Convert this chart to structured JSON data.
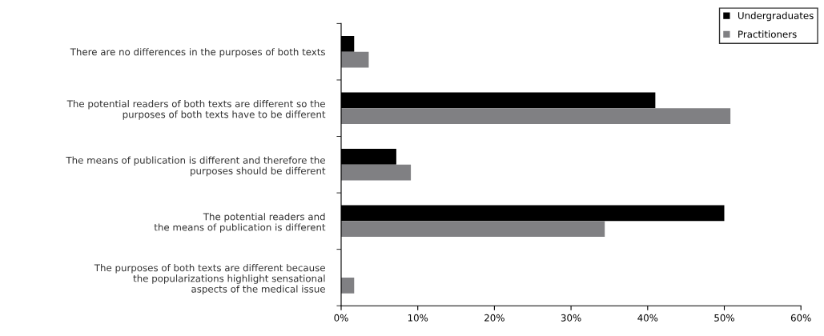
{
  "chart_data": {
    "type": "bar",
    "orientation": "horizontal",
    "categories": [
      "There are no differences in the purposes of both texts",
      "The potential readers of both texts are different so the\npurposes of both texts have to be different",
      "The means of publication is different and therefore the\npurposes should be different",
      "The potential readers and\nthe means of publication is different",
      "The purposes of both texts are different because\nthe popularizations highlight sensational\naspects of the medical issue"
    ],
    "series": [
      {
        "name": "Undergraduates",
        "color": "#000000",
        "values": [
          1.7,
          41.0,
          7.2,
          50.0,
          0
        ]
      },
      {
        "name": "Practitioners",
        "color": "#808083",
        "values": [
          3.6,
          50.8,
          9.1,
          34.4,
          1.7
        ]
      }
    ],
    "xlim": [
      0,
      60
    ],
    "xticks": [
      {
        "value": 0,
        "label": "0%"
      },
      {
        "value": 10,
        "label": "10%"
      },
      {
        "value": 20,
        "label": "20%"
      },
      {
        "value": 30,
        "label": "30%"
      },
      {
        "value": 40,
        "label": "40%"
      },
      {
        "value": 50,
        "label": "50%"
      },
      {
        "value": 60,
        "label": "60%"
      }
    ],
    "legend": "top right",
    "grid": false
  }
}
